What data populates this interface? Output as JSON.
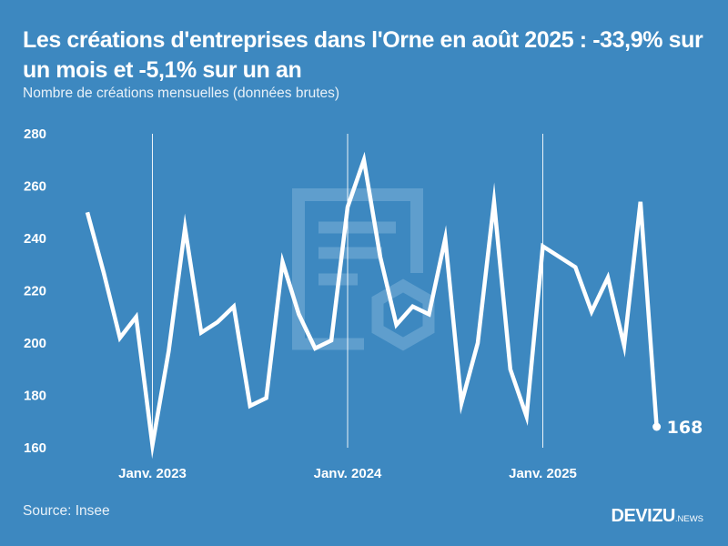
{
  "header": {
    "title": "Les créations d'entreprises dans l'Orne en août 2025 : -33,9% sur un mois et -5,1% sur un an",
    "subtitle": "Nombre de créations mensuelles (données brutes)"
  },
  "footer": {
    "source": "Source: Insee",
    "logo_brand": "DEVIZU",
    "logo_suffix": ".NEWS"
  },
  "watermark": {
    "icon": "document-gear-icon"
  },
  "colors": {
    "background": "#3d88c0",
    "line": "#ffffff",
    "gridline": "#ffffff",
    "watermark": "#6ba6d2"
  },
  "chart_data": {
    "type": "line",
    "title": "Les créations d'entreprises dans l'Orne en août 2025 : -33,9% sur un mois et -5,1% sur un an",
    "subtitle": "Nombre de créations mensuelles (données brutes)",
    "xlabel": "",
    "ylabel": "",
    "ylim": [
      160,
      280
    ],
    "yticks": [
      160,
      180,
      200,
      220,
      240,
      260,
      280
    ],
    "x": [
      "2022-09",
      "2022-10",
      "2022-11",
      "2022-12",
      "2023-01",
      "2023-02",
      "2023-03",
      "2023-04",
      "2023-05",
      "2023-06",
      "2023-07",
      "2023-08",
      "2023-09",
      "2023-10",
      "2023-11",
      "2023-12",
      "2024-01",
      "2024-02",
      "2024-03",
      "2024-04",
      "2024-05",
      "2024-06",
      "2024-07",
      "2024-08",
      "2024-09",
      "2024-10",
      "2024-11",
      "2024-12",
      "2025-01",
      "2025-02",
      "2025-03",
      "2025-04",
      "2025-05",
      "2025-06",
      "2025-07",
      "2025-08"
    ],
    "xticks": [
      {
        "index": 4,
        "label": "Janv. 2023"
      },
      {
        "index": 16,
        "label": "Janv. 2024"
      },
      {
        "index": 28,
        "label": "Janv. 2025"
      }
    ],
    "series": [
      {
        "name": "Créations d'entreprises",
        "values": [
          250,
          227,
          202,
          210,
          161,
          197,
          244,
          204,
          208,
          214,
          176,
          179,
          231,
          211,
          198,
          201,
          252,
          270,
          233,
          207,
          214,
          211,
          240,
          177,
          200,
          254,
          190,
          172,
          237,
          233,
          229,
          212,
          225,
          199,
          254,
          168
        ]
      }
    ],
    "end_label": "168",
    "grid": "vertical lines at January of each year",
    "legend": "none"
  }
}
